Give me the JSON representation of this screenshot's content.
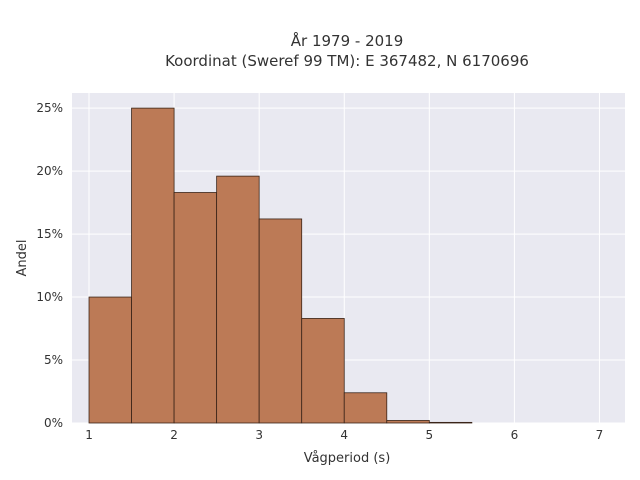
{
  "chart_data": {
    "type": "bar",
    "title_lines": [
      "År 1979 - 2019",
      "Koordinat (Sweref 99 TM): E 367482, N 6170696"
    ],
    "xlabel": "Vågperiod (s)",
    "ylabel": "Andel",
    "xlim": [
      0.8,
      7.3
    ],
    "ylim": [
      0,
      26.2
    ],
    "x_ticks": [
      {
        "value": 1,
        "label": "1"
      },
      {
        "value": 2,
        "label": "2"
      },
      {
        "value": 3,
        "label": "3"
      },
      {
        "value": 4,
        "label": "4"
      },
      {
        "value": 5,
        "label": "5"
      },
      {
        "value": 6,
        "label": "6"
      },
      {
        "value": 7,
        "label": "7"
      }
    ],
    "y_ticks": [
      {
        "value": 0,
        "label": "0%"
      },
      {
        "value": 5,
        "label": "5%"
      },
      {
        "value": 10,
        "label": "10%"
      },
      {
        "value": 15,
        "label": "15%"
      },
      {
        "value": 20,
        "label": "20%"
      },
      {
        "value": 25,
        "label": "25%"
      }
    ],
    "bins": [
      {
        "start": 1.0,
        "end": 1.5,
        "value": 10.0
      },
      {
        "start": 1.5,
        "end": 2.0,
        "value": 25.0
      },
      {
        "start": 2.0,
        "end": 2.5,
        "value": 18.3
      },
      {
        "start": 2.5,
        "end": 3.0,
        "value": 19.6
      },
      {
        "start": 3.0,
        "end": 3.5,
        "value": 16.2
      },
      {
        "start": 3.5,
        "end": 4.0,
        "value": 8.3
      },
      {
        "start": 4.0,
        "end": 4.5,
        "value": 2.4
      },
      {
        "start": 4.5,
        "end": 5.0,
        "value": 0.2
      },
      {
        "start": 5.0,
        "end": 5.5,
        "value": 0.05
      }
    ],
    "grid": true,
    "colors": {
      "bar_fill": "#bc7a56",
      "bar_stroke": "#3a2418",
      "plot_bg": "#e9e9f1",
      "grid": "#ffffff",
      "text": "#333333"
    }
  }
}
